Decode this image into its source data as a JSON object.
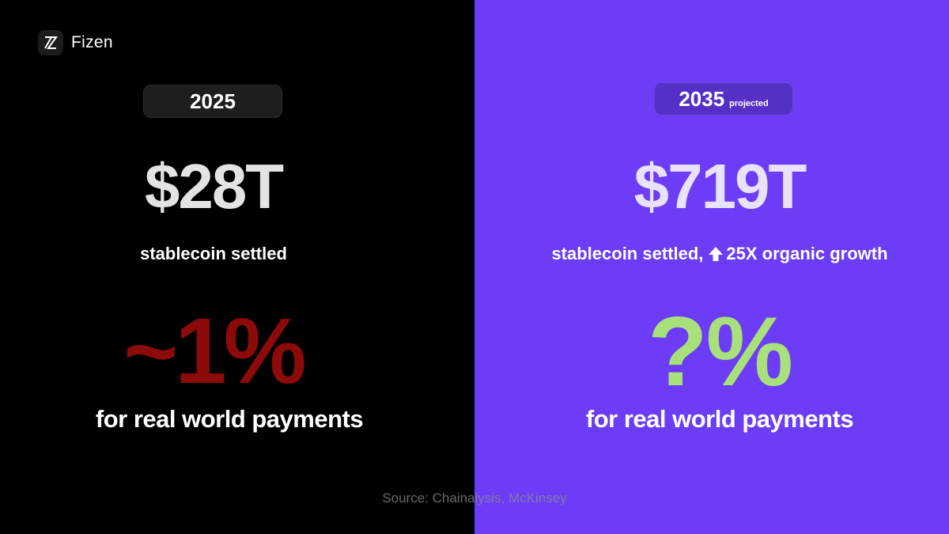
{
  "brand": {
    "name": "Fizen",
    "icon": "fizen-logo-icon"
  },
  "left": {
    "year": "2025",
    "amount": "$28T",
    "amount_caption": "stablecoin settled",
    "share": "~1%",
    "share_caption": "for real world payments"
  },
  "right": {
    "year": "2035",
    "year_note": "projected",
    "amount": "$719T",
    "amount_caption_pre": "stablecoin settled,",
    "growth_icon": "up-arrow-icon",
    "amount_caption_post": "25X organic growth",
    "share": "?%",
    "share_caption": "for real world payments"
  },
  "source": "Source: Chainalysis, McKinsey",
  "colors": {
    "left_bg": "#000000",
    "right_bg": "#6c3cf7",
    "left_share": "#8c0a0a",
    "right_share": "#a8e07a"
  }
}
